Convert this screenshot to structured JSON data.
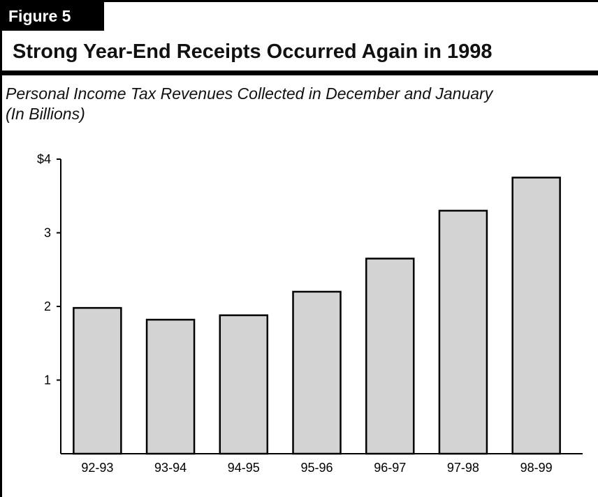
{
  "figure_label": "Figure 5",
  "title": "Strong Year-End Receipts Occurred Again in 1998",
  "subtitle_line1": "Personal Income Tax Revenues Collected in December and January",
  "subtitle_line2": "(In Billions)",
  "colors": {
    "bar_fill": "#d3d3d3",
    "bar_stroke": "#000000",
    "frame": "#000000"
  },
  "chart_data": {
    "type": "bar",
    "title": "Strong Year-End Receipts Occurred Again in 1998",
    "subtitle": "Personal Income Tax Revenues Collected in December and January (In Billions)",
    "categories": [
      "92-93",
      "93-94",
      "94-95",
      "95-96",
      "96-97",
      "97-98",
      "98-99"
    ],
    "values": [
      1.98,
      1.82,
      1.88,
      2.2,
      2.65,
      3.3,
      3.75
    ],
    "ylim": [
      0,
      4
    ],
    "yticks": [
      1,
      2,
      3,
      4
    ],
    "ytick_labels": [
      "1",
      "2",
      "3",
      "$4"
    ],
    "grid": false,
    "legend": "none"
  }
}
